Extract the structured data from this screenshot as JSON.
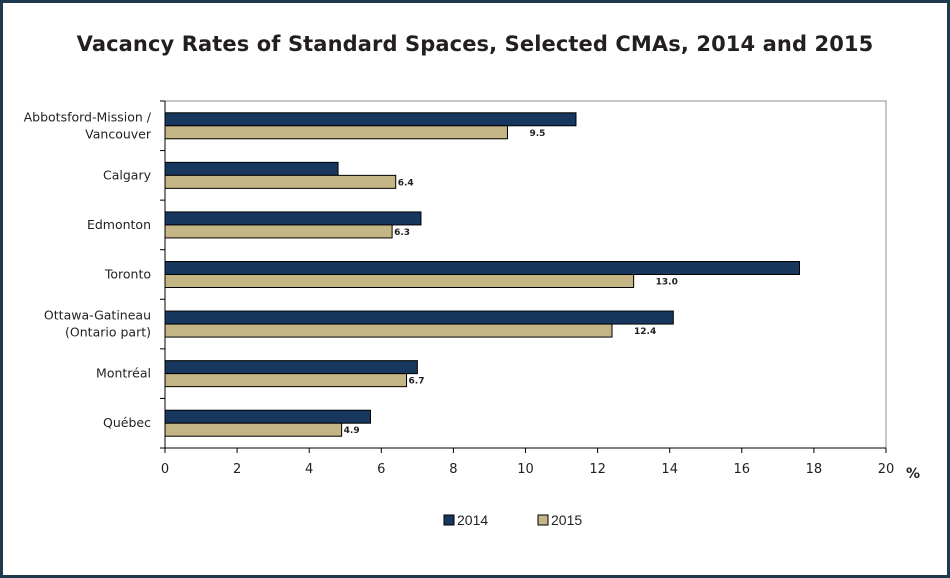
{
  "chart_data": {
    "type": "bar",
    "orientation": "horizontal",
    "title": "Vacancy Rates of Standard Spaces, Selected CMAs, 2014 and 2015",
    "unit_label": "%",
    "categories": [
      [
        "Abbotsford-Mission /",
        "Vancouver"
      ],
      [
        "Calgary"
      ],
      [
        "Edmonton"
      ],
      [
        "Toronto"
      ],
      [
        "Ottawa-Gatineau",
        "(Ontario part)"
      ],
      [
        "Montréal"
      ],
      [
        "Québec"
      ]
    ],
    "series": [
      {
        "name": "2014",
        "color": "#17375e",
        "values": [
          11.4,
          4.8,
          7.1,
          17.6,
          14.1,
          7.0,
          5.7
        ],
        "data_labels": null
      },
      {
        "name": "2015",
        "color": "#c4b584",
        "values": [
          9.5,
          6.4,
          6.3,
          13.0,
          12.4,
          6.7,
          4.9
        ],
        "data_labels": [
          "9.5",
          "6.4",
          "6.3",
          "13.0",
          "12.4",
          "6.7",
          "4.9"
        ]
      }
    ],
    "xlim": [
      0,
      20
    ],
    "xticks": [
      0,
      2,
      4,
      6,
      8,
      10,
      12,
      14,
      16,
      18,
      20
    ],
    "grid": false,
    "legend": "bottom"
  }
}
